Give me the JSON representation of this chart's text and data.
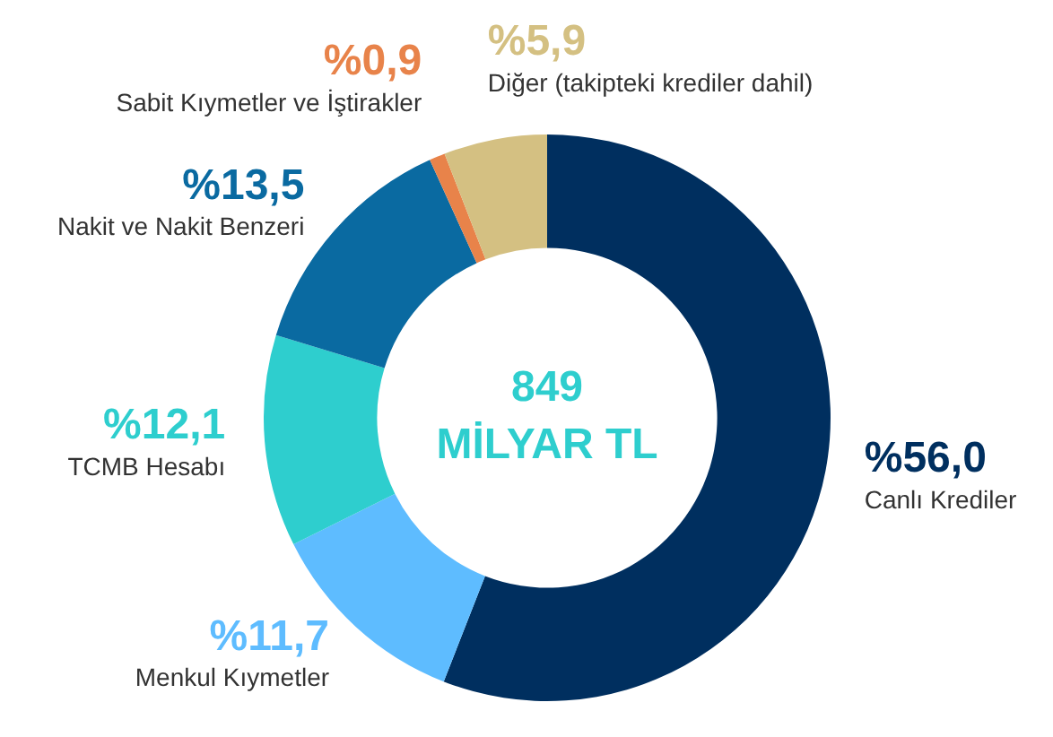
{
  "chart_data": {
    "type": "donut",
    "categories": [
      "Canlı Krediler",
      "Menkul Kıymetler",
      "TCMB Hesabı",
      "Nakit ve Nakit Benzeri",
      "Sabit Kıymetler ve İştirakler",
      "Diğer (takipteki krediler dahil)"
    ],
    "values": [
      56.0,
      11.7,
      12.1,
      13.5,
      0.9,
      5.9
    ],
    "value_labels": [
      "%56,0",
      "%11,7",
      "%12,1",
      "%13,5",
      "%0,9",
      "%5,9"
    ],
    "colors": [
      "#002f5f",
      "#5ebcff",
      "#2ecece",
      "#0a6aa1",
      "#e8834a",
      "#d4c082"
    ],
    "annotations": [
      "849",
      "MİLYAR TL"
    ],
    "legend": false
  }
}
